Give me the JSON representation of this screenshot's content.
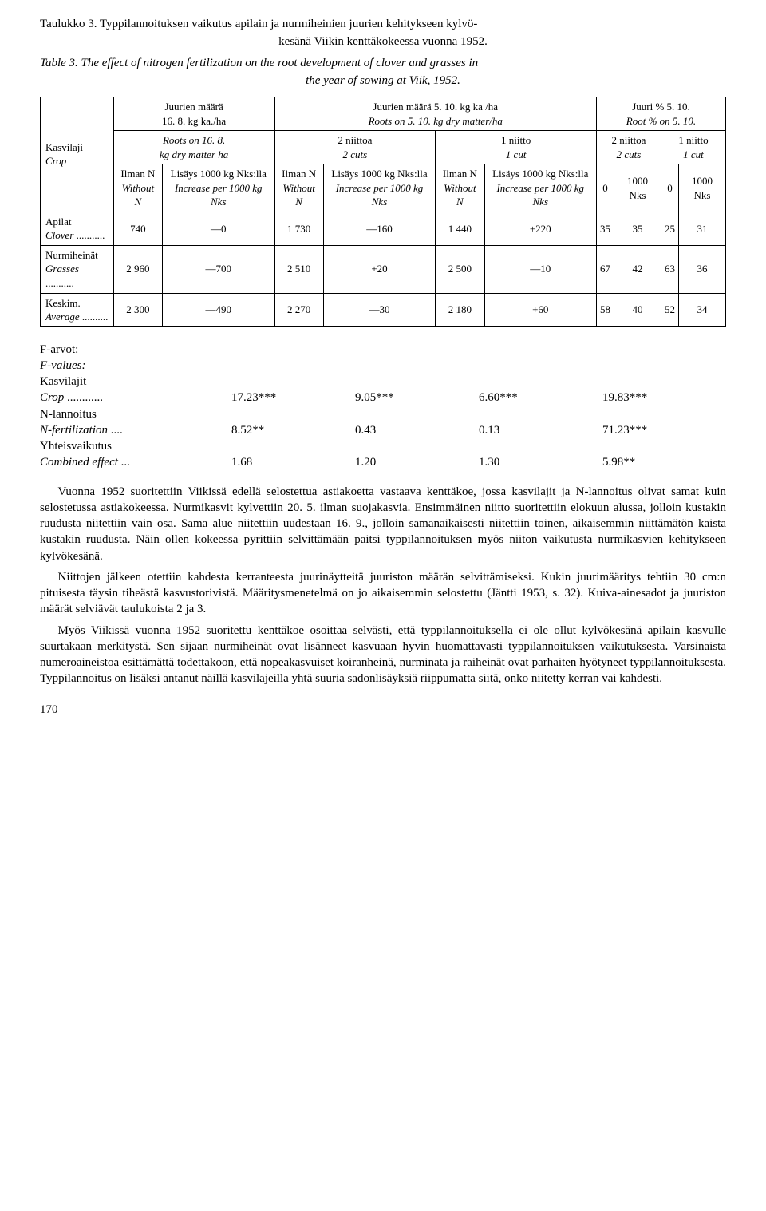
{
  "caption": {
    "line1": "Taulukko 3. Typpilannoituksen vaikutus apilain ja nurmiheinien juurien kehitykseen kylvö-",
    "line2": "kesänä Viikin kenttäkokeessa vuonna 1952.",
    "line3a": "Table 3.",
    "line3b": "The effect of nitrogen fertilization on the root development of clover and grasses in",
    "line4": "the year of sowing at Viik, 1952."
  },
  "headers": {
    "kasvilaji": "Kasvilaji",
    "crop": "Crop",
    "juurien_maara": "Juurien määrä",
    "juurien_maara_sub": "16. 8. kg ka./ha",
    "roots_on": "Roots on 16. 8.",
    "roots_on_sub": "kg dry matter ha",
    "ilman_n": "Ilman N",
    "without_n": "Without N",
    "lisays": "Lisäys 1000 kg Nks:lla",
    "increase": "Increase per 1000 kg Nks",
    "juurien_510": "Juurien määrä 5. 10. kg ka /ha",
    "roots_510": "Roots on 5. 10. kg dry matter/ha",
    "niittoa2": "2 niittoa",
    "cuts2": "2 cuts",
    "niitto1": "1 niitto",
    "cut1": "1 cut",
    "juuri_pct": "Juuri % 5. 10.",
    "root_pct": "Root % on 5. 10.",
    "zero": "0",
    "nks1000": "1000 Nks"
  },
  "rows": {
    "apilat": "Apilat",
    "clover": "Clover",
    "clover_vals": [
      "740",
      "—0",
      "1 730",
      "—160",
      "1 440",
      "+220",
      "35",
      "35",
      "25",
      "31"
    ],
    "nurmiheinat": "Nurmiheinät",
    "grasses": "Grasses",
    "grasses_vals": [
      "2 960",
      "—700",
      "2 510",
      "+20",
      "2 500",
      "—10",
      "67",
      "42",
      "63",
      "36"
    ],
    "keskim": "Keskim.",
    "average": "Average",
    "average_vals": [
      "2 300",
      "—490",
      "2 270",
      "—30",
      "2 180",
      "+60",
      "58",
      "40",
      "52",
      "34"
    ]
  },
  "fvalues": {
    "title1": "F-arvot:",
    "title2": "F-values:",
    "kasvilajit": "Kasvilajit",
    "crop": "Crop",
    "crop_vals": [
      "17.23***",
      "9.05***",
      "6.60***",
      "19.83***"
    ],
    "nlannoitus": "N-lannoitus",
    "nfert": "N-fertilization",
    "nfert_vals": [
      "8.52**",
      "0.43",
      "0.13",
      "71.23***"
    ],
    "yhteis": "Yhteisvaikutus",
    "combined": "Combined effect",
    "combined_vals": [
      "1.68",
      "1.20",
      "1.30",
      "5.98**"
    ]
  },
  "paragraphs": {
    "p1": "Vuonna 1952 suoritettiin Viikissä edellä selostettua astiakoetta vastaava kenttäkoe, jossa kasvilajit ja N-lannoitus olivat samat kuin selostetussa astiakokeessa. Nurmikasvit kylvettiin 20. 5. ilman suojakasvia. Ensimmäinen niitto suoritettiin elokuun alussa, jolloin kustakin ruudusta niitettiin vain osa. Sama alue niitettiin uudestaan 16. 9., jolloin samanaikaisesti niitettiin toinen, aikaisemmin niittämätön kaista kustakin ruudusta. Näin ollen kokeessa pyrittiin selvittämään paitsi typpilannoituksen myös niiton vaikutusta nurmikasvien kehitykseen kylvökesänä.",
    "p2": "Niittojen jälkeen otettiin kahdesta kerranteesta juurinäytteitä juuriston määrän selvittämiseksi. Kukin juurimääritys tehtiin 30 cm:n pituisesta täysin tiheästä kasvustorivistä. Määritysmenetelmä on jo aikaisemmin selostettu (Jäntti 1953, s. 32). Kuiva-ainesadot ja juuriston määrät selviävät taulukoista 2 ja 3.",
    "p3": "Myös Viikissä vuonna 1952 suoritettu kenttäkoe osoittaa selvästi, että typpilannoituksella ei ole ollut kylvökesänä apilain kasvulle suurtakaan merkitystä. Sen sijaan nurmiheinät ovat lisänneet kasvuaan hyvin huomattavasti typpilannoituksen vaikutuksesta. Varsinaista numeroaineistoa esittämättä todettakoon, että nopeakasvuiset koiranheinä, nurminata ja raiheinät ovat parhaiten hyötyneet typpilannoituksesta. Typpilannoitus on lisäksi antanut näillä kasvilajeilla yhtä suuria sadonlisäyksiä riippumatta siitä, onko niitetty kerran vai kahdesti."
  },
  "pagenum": "170"
}
